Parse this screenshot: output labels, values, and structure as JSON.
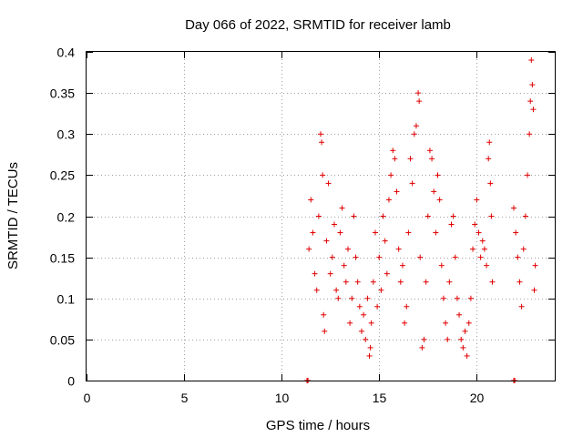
{
  "chart_data": {
    "type": "scatter",
    "title": "Day 066 of 2022, SRMTID for receiver lamb",
    "xlabel": "GPS time / hours",
    "ylabel": "SRMTID / TECUs",
    "xlim": [
      0,
      24
    ],
    "ylim": [
      0,
      0.4
    ],
    "xticks": [
      0,
      5,
      10,
      15,
      20
    ],
    "xtick_labels": [
      "0",
      "5",
      "10",
      "15",
      "20"
    ],
    "yticks": [
      0,
      0.05,
      0.1,
      0.15,
      0.2,
      0.25,
      0.3,
      0.35,
      0.4
    ],
    "ytick_labels": [
      "0",
      "0.05",
      "0.1",
      "0.15",
      "0.2",
      "0.25",
      "0.3",
      "0.35",
      "0.4"
    ],
    "grid": true,
    "marker": "+",
    "marker_color": "#e00000",
    "series": [
      {
        "name": "SRMTID",
        "points": [
          [
            11.3,
            0.0
          ],
          [
            11.35,
            0.0
          ],
          [
            21.9,
            0.0
          ],
          [
            21.95,
            0.0
          ],
          [
            11.4,
            0.16
          ],
          [
            11.5,
            0.22
          ],
          [
            11.6,
            0.18
          ],
          [
            11.7,
            0.13
          ],
          [
            11.8,
            0.11
          ],
          [
            11.9,
            0.2
          ],
          [
            12.0,
            0.3
          ],
          [
            12.05,
            0.29
          ],
          [
            12.1,
            0.25
          ],
          [
            12.15,
            0.08
          ],
          [
            12.2,
            0.06
          ],
          [
            12.3,
            0.17
          ],
          [
            12.4,
            0.24
          ],
          [
            12.5,
            0.13
          ],
          [
            12.6,
            0.15
          ],
          [
            12.7,
            0.19
          ],
          [
            12.8,
            0.11
          ],
          [
            12.9,
            0.1
          ],
          [
            13.0,
            0.18
          ],
          [
            13.1,
            0.21
          ],
          [
            13.2,
            0.14
          ],
          [
            13.3,
            0.12
          ],
          [
            13.4,
            0.16
          ],
          [
            13.5,
            0.07
          ],
          [
            13.6,
            0.1
          ],
          [
            13.7,
            0.2
          ],
          [
            13.8,
            0.15
          ],
          [
            13.9,
            0.12
          ],
          [
            14.0,
            0.09
          ],
          [
            14.1,
            0.06
          ],
          [
            14.2,
            0.08
          ],
          [
            14.3,
            0.05
          ],
          [
            14.4,
            0.1
          ],
          [
            14.5,
            0.03
          ],
          [
            14.55,
            0.04
          ],
          [
            14.6,
            0.07
          ],
          [
            14.7,
            0.12
          ],
          [
            14.8,
            0.18
          ],
          [
            14.9,
            0.09
          ],
          [
            15.0,
            0.15
          ],
          [
            15.1,
            0.11
          ],
          [
            15.2,
            0.2
          ],
          [
            15.3,
            0.17
          ],
          [
            15.4,
            0.13
          ],
          [
            15.5,
            0.22
          ],
          [
            15.6,
            0.25
          ],
          [
            15.7,
            0.28
          ],
          [
            15.8,
            0.27
          ],
          [
            15.9,
            0.23
          ],
          [
            16.0,
            0.16
          ],
          [
            16.1,
            0.12
          ],
          [
            16.2,
            0.14
          ],
          [
            16.3,
            0.07
          ],
          [
            16.4,
            0.09
          ],
          [
            16.5,
            0.18
          ],
          [
            16.6,
            0.27
          ],
          [
            16.7,
            0.24
          ],
          [
            16.8,
            0.3
          ],
          [
            16.9,
            0.31
          ],
          [
            17.0,
            0.35
          ],
          [
            17.05,
            0.34
          ],
          [
            17.1,
            0.15
          ],
          [
            17.2,
            0.04
          ],
          [
            17.3,
            0.05
          ],
          [
            17.4,
            0.12
          ],
          [
            17.5,
            0.2
          ],
          [
            17.6,
            0.28
          ],
          [
            17.7,
            0.27
          ],
          [
            17.8,
            0.23
          ],
          [
            17.9,
            0.18
          ],
          [
            18.0,
            0.25
          ],
          [
            18.1,
            0.22
          ],
          [
            18.2,
            0.14
          ],
          [
            18.3,
            0.1
          ],
          [
            18.4,
            0.07
          ],
          [
            18.5,
            0.05
          ],
          [
            18.6,
            0.12
          ],
          [
            18.7,
            0.19
          ],
          [
            18.8,
            0.2
          ],
          [
            18.9,
            0.15
          ],
          [
            19.0,
            0.1
          ],
          [
            19.1,
            0.08
          ],
          [
            19.2,
            0.05
          ],
          [
            19.3,
            0.04
          ],
          [
            19.4,
            0.06
          ],
          [
            19.5,
            0.03
          ],
          [
            19.6,
            0.07
          ],
          [
            19.7,
            0.1
          ],
          [
            19.8,
            0.16
          ],
          [
            19.9,
            0.19
          ],
          [
            20.0,
            0.22
          ],
          [
            20.1,
            0.18
          ],
          [
            20.2,
            0.15
          ],
          [
            20.3,
            0.17
          ],
          [
            20.4,
            0.16
          ],
          [
            20.5,
            0.14
          ],
          [
            20.6,
            0.27
          ],
          [
            20.65,
            0.29
          ],
          [
            20.7,
            0.24
          ],
          [
            20.75,
            0.2
          ],
          [
            20.8,
            0.12
          ],
          [
            21.9,
            0.21
          ],
          [
            22.0,
            0.18
          ],
          [
            22.1,
            0.15
          ],
          [
            22.2,
            0.12
          ],
          [
            22.3,
            0.09
          ],
          [
            22.4,
            0.16
          ],
          [
            22.5,
            0.2
          ],
          [
            22.6,
            0.25
          ],
          [
            22.7,
            0.3
          ],
          [
            22.75,
            0.34
          ],
          [
            22.8,
            0.39
          ],
          [
            22.85,
            0.36
          ],
          [
            22.9,
            0.33
          ],
          [
            22.95,
            0.11
          ],
          [
            23.0,
            0.14
          ]
        ]
      }
    ]
  }
}
